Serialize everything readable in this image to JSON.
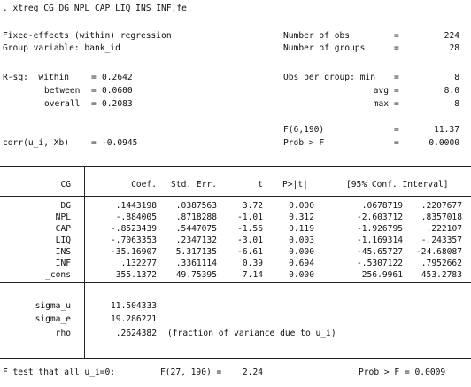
{
  "command": ". xtreg CG DG NPL CAP LIQ INS INF,fe",
  "header": {
    "model": "Fixed-effects (within) regression",
    "group_var": "Group variable: bank_id",
    "nobs_label": "Number of obs",
    "nobs_eq": "=",
    "nobs": "224",
    "ngroups_label": "Number of groups",
    "ngroups_eq": "=",
    "ngroups": "28",
    "rsq_within_label": "R-sq:  within",
    "rsq_within_eq": "=",
    "rsq_within": "0.2642",
    "rsq_between_label": "between",
    "rsq_between_eq": "=",
    "rsq_between": "0.0600",
    "rsq_overall_label": "overall",
    "rsq_overall_eq": "=",
    "rsq_overall": "0.2083",
    "obs_min_label": "Obs per group: min",
    "obs_min_eq": "=",
    "obs_min": "8",
    "obs_avg_label": "avg",
    "obs_avg_eq": "=",
    "obs_avg": "8.0",
    "obs_max_label": "max",
    "obs_max_eq": "=",
    "obs_max": "8",
    "f_label": "F(6,190)",
    "f_eq": "=",
    "f_value": "11.37",
    "corr_label": "corr(u_i, Xb)",
    "corr_eq": "=",
    "corr_value": "-0.0945",
    "probf_label": "Prob > F",
    "probf_eq": "=",
    "probf_value": "0.0000"
  },
  "table": {
    "depvar": "CG",
    "columns": [
      "Coef.",
      "Std. Err.",
      "t",
      "P>|t|",
      "[95% Conf. Interval]"
    ],
    "rows": [
      {
        "name": "DG",
        "coef": ".1443198",
        "se": ".0387563",
        "t": "3.72",
        "p": "0.000",
        "lo": ".0678719",
        "hi": ".2207677"
      },
      {
        "name": "NPL",
        "coef": "-.884005",
        "se": ".8718288",
        "t": "-1.01",
        "p": "0.312",
        "lo": "-2.603712",
        "hi": ".8357018"
      },
      {
        "name": "CAP",
        "coef": "-.8523439",
        "se": ".5447075",
        "t": "-1.56",
        "p": "0.119",
        "lo": "-1.926795",
        "hi": ".222107"
      },
      {
        "name": "LIQ",
        "coef": "-.7063353",
        "se": ".2347132",
        "t": "-3.01",
        "p": "0.003",
        "lo": "-1.169314",
        "hi": "-.243357"
      },
      {
        "name": "INS",
        "coef": "-35.16907",
        "se": "5.317135",
        "t": "-6.61",
        "p": "0.000",
        "lo": "-45.65727",
        "hi": "-24.68087"
      },
      {
        "name": "INF",
        "coef": ".132277",
        "se": ".3361114",
        "t": "0.39",
        "p": "0.694",
        "lo": "-.5307122",
        "hi": ".7952662"
      },
      {
        "name": "_cons",
        "coef": "355.1372",
        "se": "49.75395",
        "t": "7.14",
        "p": "0.000",
        "lo": "256.9961",
        "hi": "453.2783"
      }
    ],
    "sigma_u_label": "sigma_u",
    "sigma_u": "11.504333",
    "sigma_e_label": "sigma_e",
    "sigma_e": "19.286221",
    "rho_label": "rho",
    "rho": ".2624382",
    "rho_note": "(fraction of variance due to u_i)"
  },
  "ftest": {
    "label": "F test that all u_i=0:",
    "stat_label": "F(27, 190) =",
    "stat": "2.24",
    "prob_label": "Prob > F = 0.0009"
  }
}
